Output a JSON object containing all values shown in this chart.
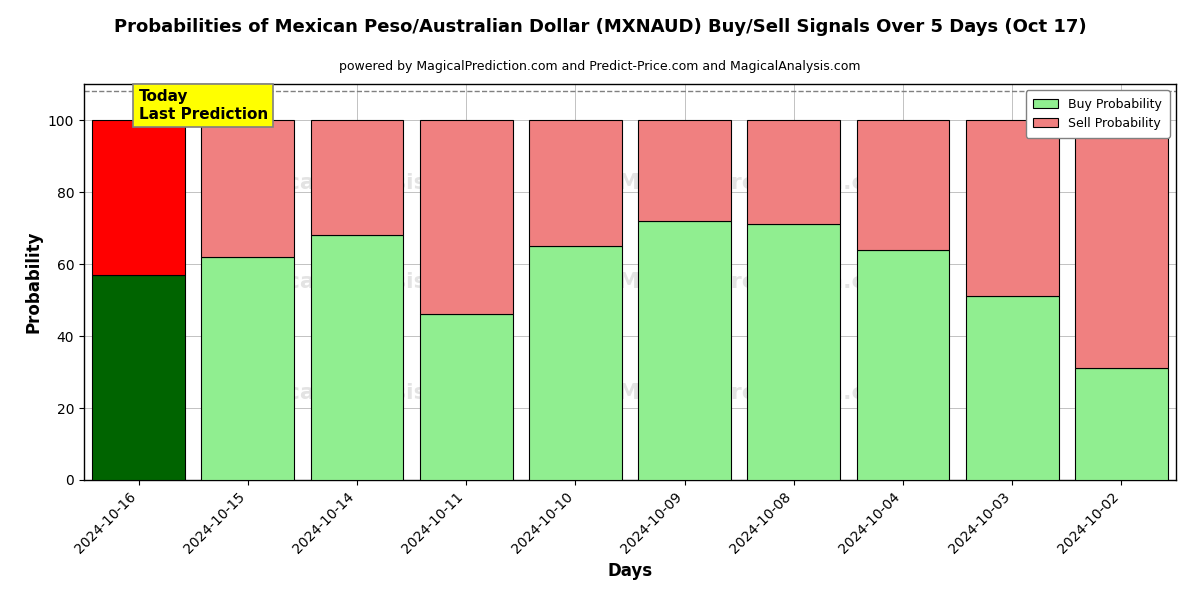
{
  "title": "Probabilities of Mexican Peso/Australian Dollar (MXNAUD) Buy/Sell Signals Over 5 Days (Oct 17)",
  "subtitle": "powered by MagicalPrediction.com and Predict-Price.com and MagicalAnalysis.com",
  "xlabel": "Days",
  "ylabel": "Probability",
  "categories": [
    "2024-10-16",
    "2024-10-15",
    "2024-10-14",
    "2024-10-11",
    "2024-10-10",
    "2024-10-09",
    "2024-10-08",
    "2024-10-04",
    "2024-10-03",
    "2024-10-02"
  ],
  "buy_values": [
    57,
    62,
    68,
    46,
    65,
    72,
    71,
    64,
    51,
    31
  ],
  "sell_values": [
    43,
    38,
    32,
    54,
    35,
    28,
    29,
    36,
    49,
    69
  ],
  "today_buy_color": "#006400",
  "today_sell_color": "#FF0000",
  "buy_color": "#90EE90",
  "sell_color": "#F08080",
  "today_label": "Today\nLast Prediction",
  "today_label_bg": "#FFFF00",
  "legend_buy_label": "Buy Probability",
  "legend_sell_label": "Sell Probability",
  "ylim": [
    0,
    110
  ],
  "yticks": [
    0,
    20,
    40,
    60,
    80,
    100
  ],
  "dashed_line_y": 108,
  "background_color": "#ffffff",
  "grid_color": "#aaaaaa"
}
